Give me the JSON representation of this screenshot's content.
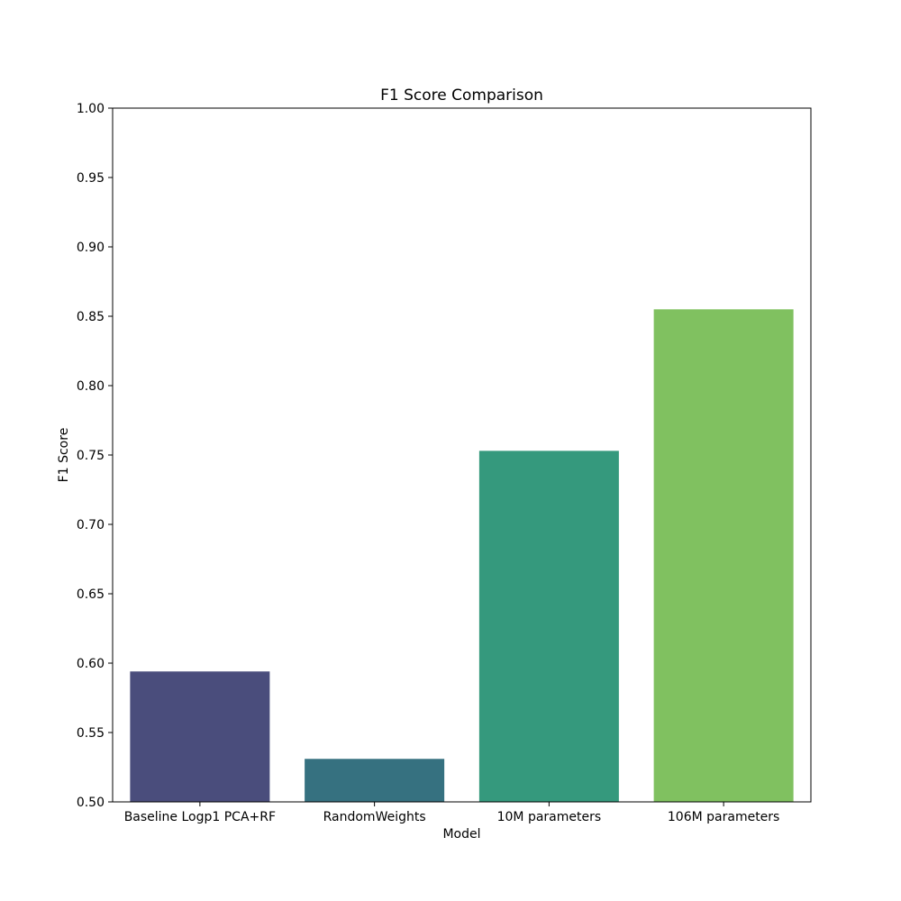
{
  "chart_data": {
    "type": "bar",
    "title": "F1 Score Comparison",
    "xlabel": "Model",
    "ylabel": "F1 Score",
    "categories": [
      "Baseline Logp1 PCA+RF",
      "RandomWeights",
      "10M parameters",
      "106M parameters"
    ],
    "values": [
      0.594,
      0.531,
      0.753,
      0.855
    ],
    "colors": [
      "#4a4d7c",
      "#367180",
      "#35997d",
      "#80c160"
    ],
    "ylim": [
      0.5,
      1.0
    ],
    "yticks": [
      "0.50",
      "0.55",
      "0.60",
      "0.65",
      "0.70",
      "0.75",
      "0.80",
      "0.85",
      "0.90",
      "0.95",
      "1.00"
    ],
    "grid": false,
    "legend": "none"
  }
}
